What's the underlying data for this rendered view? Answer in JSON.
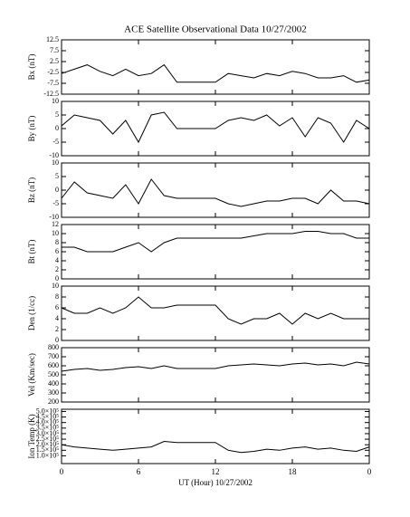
{
  "chart_data": [
    {
      "type": "line",
      "title": "ACE Satellite Observational Data   10/27/2002",
      "ylabel": "Bx (nT)",
      "color": "#000000",
      "x": [
        0,
        1,
        2,
        3,
        4,
        5,
        6,
        7,
        8,
        9,
        10,
        11,
        12,
        13,
        14,
        15,
        16,
        17,
        18,
        19,
        20,
        21,
        22,
        23,
        24
      ],
      "values": [
        -3,
        -1,
        1,
        -2,
        -4,
        -1,
        -4,
        -3,
        1,
        -7,
        -7,
        -7,
        -7,
        -3,
        -4,
        -5,
        -3,
        -4,
        -2,
        -3,
        -5,
        -5,
        -4,
        -7,
        -6
      ],
      "xlim": [
        0,
        24
      ],
      "ylim": [
        -12.5,
        12.5
      ],
      "yticks": [
        -12.5,
        -7.5,
        -2.5,
        2.5,
        7.5,
        12.5
      ]
    },
    {
      "type": "line",
      "ylabel": "By (nT)",
      "color": "#000000",
      "x": [
        0,
        1,
        2,
        3,
        4,
        5,
        6,
        7,
        8,
        9,
        10,
        11,
        12,
        13,
        14,
        15,
        16,
        17,
        18,
        19,
        20,
        21,
        22,
        23,
        24
      ],
      "values": [
        1,
        5,
        4,
        3,
        -2,
        3,
        -5,
        5,
        6,
        0,
        0,
        0,
        0,
        3,
        4,
        3,
        5,
        1,
        4,
        -3,
        4,
        2,
        -5,
        3,
        0
      ],
      "xlim": [
        0,
        24
      ],
      "ylim": [
        -10,
        10
      ],
      "yticks": [
        -10,
        -5,
        0,
        5,
        10
      ]
    },
    {
      "type": "line",
      "ylabel": "Bz (nT)",
      "color": "#000000",
      "x": [
        0,
        1,
        2,
        3,
        4,
        5,
        6,
        7,
        8,
        9,
        10,
        11,
        12,
        13,
        14,
        15,
        16,
        17,
        18,
        19,
        20,
        21,
        22,
        23,
        24
      ],
      "values": [
        -3,
        3,
        -1,
        -2,
        -3,
        2,
        -5,
        4,
        -2,
        -3,
        -3,
        -3,
        -3,
        -5,
        -6,
        -5,
        -4,
        -4,
        -3,
        -3,
        -5,
        0,
        -4,
        -4,
        -5
      ],
      "xlim": [
        0,
        24
      ],
      "ylim": [
        -10,
        10
      ],
      "yticks": [
        -10,
        -5,
        0,
        5,
        10
      ]
    },
    {
      "type": "line",
      "ylabel": "Bt (nT)",
      "color": "#000000",
      "x": [
        0,
        1,
        2,
        3,
        4,
        5,
        6,
        7,
        8,
        9,
        10,
        11,
        12,
        13,
        14,
        15,
        16,
        17,
        18,
        19,
        20,
        21,
        22,
        23,
        24
      ],
      "values": [
        7,
        7,
        6,
        6,
        6,
        7,
        8,
        6,
        8,
        9,
        9,
        9,
        9,
        9,
        9,
        9.5,
        10,
        10,
        10,
        10.5,
        10.5,
        10,
        10,
        9,
        9
      ],
      "xlim": [
        0,
        24
      ],
      "ylim": [
        0,
        12
      ],
      "yticks": [
        0,
        2,
        4,
        6,
        8,
        10,
        12
      ]
    },
    {
      "type": "line",
      "ylabel": "Den (1/cc)",
      "color": "#000000",
      "x": [
        0,
        1,
        2,
        3,
        4,
        5,
        6,
        7,
        8,
        9,
        10,
        11,
        12,
        13,
        14,
        15,
        16,
        17,
        18,
        19,
        20,
        21,
        22,
        23,
        24
      ],
      "values": [
        6,
        5,
        5,
        6,
        5,
        6,
        8,
        6,
        6,
        6.5,
        6.5,
        6.5,
        6.5,
        4,
        3,
        4,
        4,
        5,
        3,
        5,
        4,
        5,
        4,
        4,
        4
      ],
      "xlim": [
        0,
        24
      ],
      "ylim": [
        0,
        10
      ],
      "yticks": [
        0,
        2,
        4,
        6,
        8,
        10
      ]
    },
    {
      "type": "line",
      "ylabel": "Vel (Km/sec)",
      "color": "#000000",
      "x": [
        0,
        1,
        2,
        3,
        4,
        5,
        6,
        7,
        8,
        9,
        10,
        11,
        12,
        13,
        14,
        15,
        16,
        17,
        18,
        19,
        20,
        21,
        22,
        23,
        24
      ],
      "values": [
        540,
        560,
        570,
        550,
        560,
        580,
        590,
        570,
        600,
        570,
        570,
        570,
        570,
        600,
        610,
        620,
        610,
        600,
        620,
        630,
        610,
        620,
        600,
        640,
        620
      ],
      "xlim": [
        0,
        24
      ],
      "ylim": [
        200,
        800
      ],
      "yticks": [
        200,
        300,
        400,
        500,
        600,
        700,
        800
      ]
    },
    {
      "type": "line",
      "ylabel": "Ion Temp (K)",
      "xlabel": "UT (Hour)   10/27/2002",
      "color": "#000000",
      "x": [
        0,
        1,
        2,
        3,
        4,
        5,
        6,
        7,
        8,
        9,
        10,
        11,
        12,
        13,
        14,
        15,
        16,
        17,
        18,
        19,
        20,
        21,
        22,
        23,
        24
      ],
      "values": [
        200000,
        180000,
        170000,
        160000,
        150000,
        160000,
        170000,
        180000,
        230000,
        220000,
        220000,
        220000,
        220000,
        150000,
        130000,
        140000,
        160000,
        150000,
        170000,
        180000,
        160000,
        170000,
        150000,
        140000,
        180000
      ],
      "xlim": [
        0,
        24
      ],
      "ylim": [
        30000,
        520000
      ],
      "yticks": [
        {
          "value": 100000,
          "label": "1.0×10⁵"
        },
        {
          "value": 150000,
          "label": "1.5×10⁵"
        },
        {
          "value": 200000,
          "label": "2.0×10⁵"
        },
        {
          "value": 250000,
          "label": "2.5×10⁵"
        },
        {
          "value": 300000,
          "label": "3.0×10⁵"
        },
        {
          "value": 350000,
          "label": "3.5×10⁵"
        },
        {
          "value": 400000,
          "label": "4.0×10⁵"
        },
        {
          "value": 450000,
          "label": "4.5×10⁵"
        },
        {
          "value": 500000,
          "label": "5.0×10⁵"
        }
      ],
      "xticks": [
        0,
        6,
        12,
        18,
        {
          "value": 24,
          "label": "0"
        }
      ]
    }
  ]
}
